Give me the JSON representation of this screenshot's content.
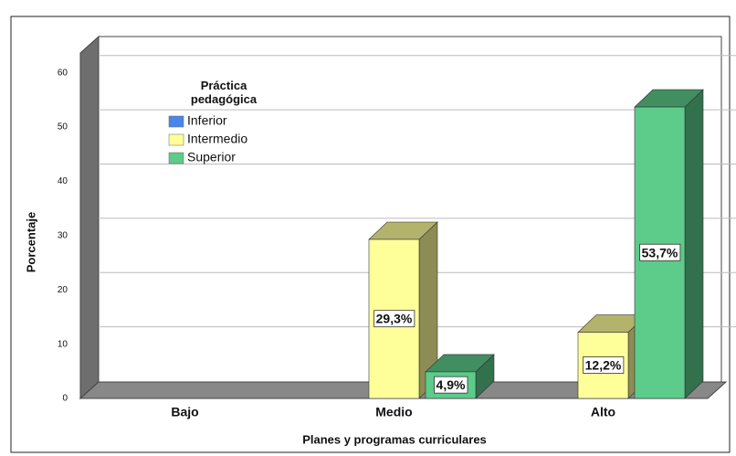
{
  "chart_data": {
    "type": "bar3d",
    "categories": [
      "Bajo",
      "Medio",
      "Alto"
    ],
    "series": [
      {
        "name": "Inferior",
        "color": "#4a86e8",
        "values": [
          null,
          null,
          null
        ],
        "value_labels": [
          null,
          null,
          null
        ]
      },
      {
        "name": "Intermedio",
        "color": "#ffff99",
        "values": [
          null,
          29.3,
          12.2
        ],
        "value_labels": [
          null,
          "29,3%",
          "12,2%"
        ]
      },
      {
        "name": "Superior",
        "color": "#5dcb8a",
        "values": [
          null,
          4.9,
          53.7
        ],
        "value_labels": [
          null,
          "4,9%",
          "53,7%"
        ]
      }
    ],
    "legend_title": "Práctica pedagógica",
    "xlabel": "Planes y programas curriculares",
    "ylabel": "Porcentaje",
    "ylim": [
      0,
      65
    ],
    "yticks": [
      0,
      10,
      20,
      30,
      40,
      50,
      60
    ],
    "grid": true,
    "legend": "upper left"
  }
}
